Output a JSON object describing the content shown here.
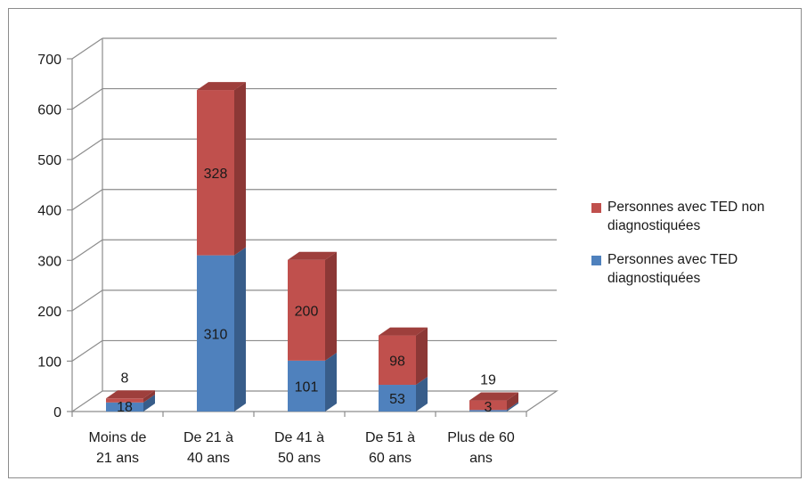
{
  "chart_data": {
    "type": "bar",
    "stacked": true,
    "three_d": true,
    "categories": [
      [
        "Moins de",
        "21 ans"
      ],
      [
        "De 21 à",
        "40 ans"
      ],
      [
        "De 41 à",
        "50 ans"
      ],
      [
        "De 51 à",
        "60 ans"
      ],
      [
        "Plus de 60",
        "ans"
      ]
    ],
    "series": [
      {
        "name": "Personnes avec TED diagnostiquées",
        "values": [
          18,
          310,
          101,
          53,
          3
        ],
        "value_labels": [
          "18",
          "310",
          "101",
          "53",
          "3"
        ],
        "color": "#4f81bd",
        "side_color": "#385d8a",
        "top_color": "#3c679b"
      },
      {
        "name": "Personnes avec TED non diagnostiquées",
        "values": [
          8,
          328,
          200,
          98,
          19
        ],
        "value_labels": [
          "8",
          "328",
          "200",
          "98",
          "19"
        ],
        "color": "#c0504d",
        "side_color": "#8c3836",
        "top_color": "#9e3f3c"
      }
    ],
    "ylim": [
      0,
      700
    ],
    "y_ticks": [
      "0",
      "100",
      "200",
      "300",
      "400",
      "500",
      "600",
      "700"
    ],
    "grid": true,
    "legend_position": "right",
    "legend_order": [
      1,
      0
    ],
    "title": "",
    "xlabel": "",
    "ylabel": ""
  }
}
